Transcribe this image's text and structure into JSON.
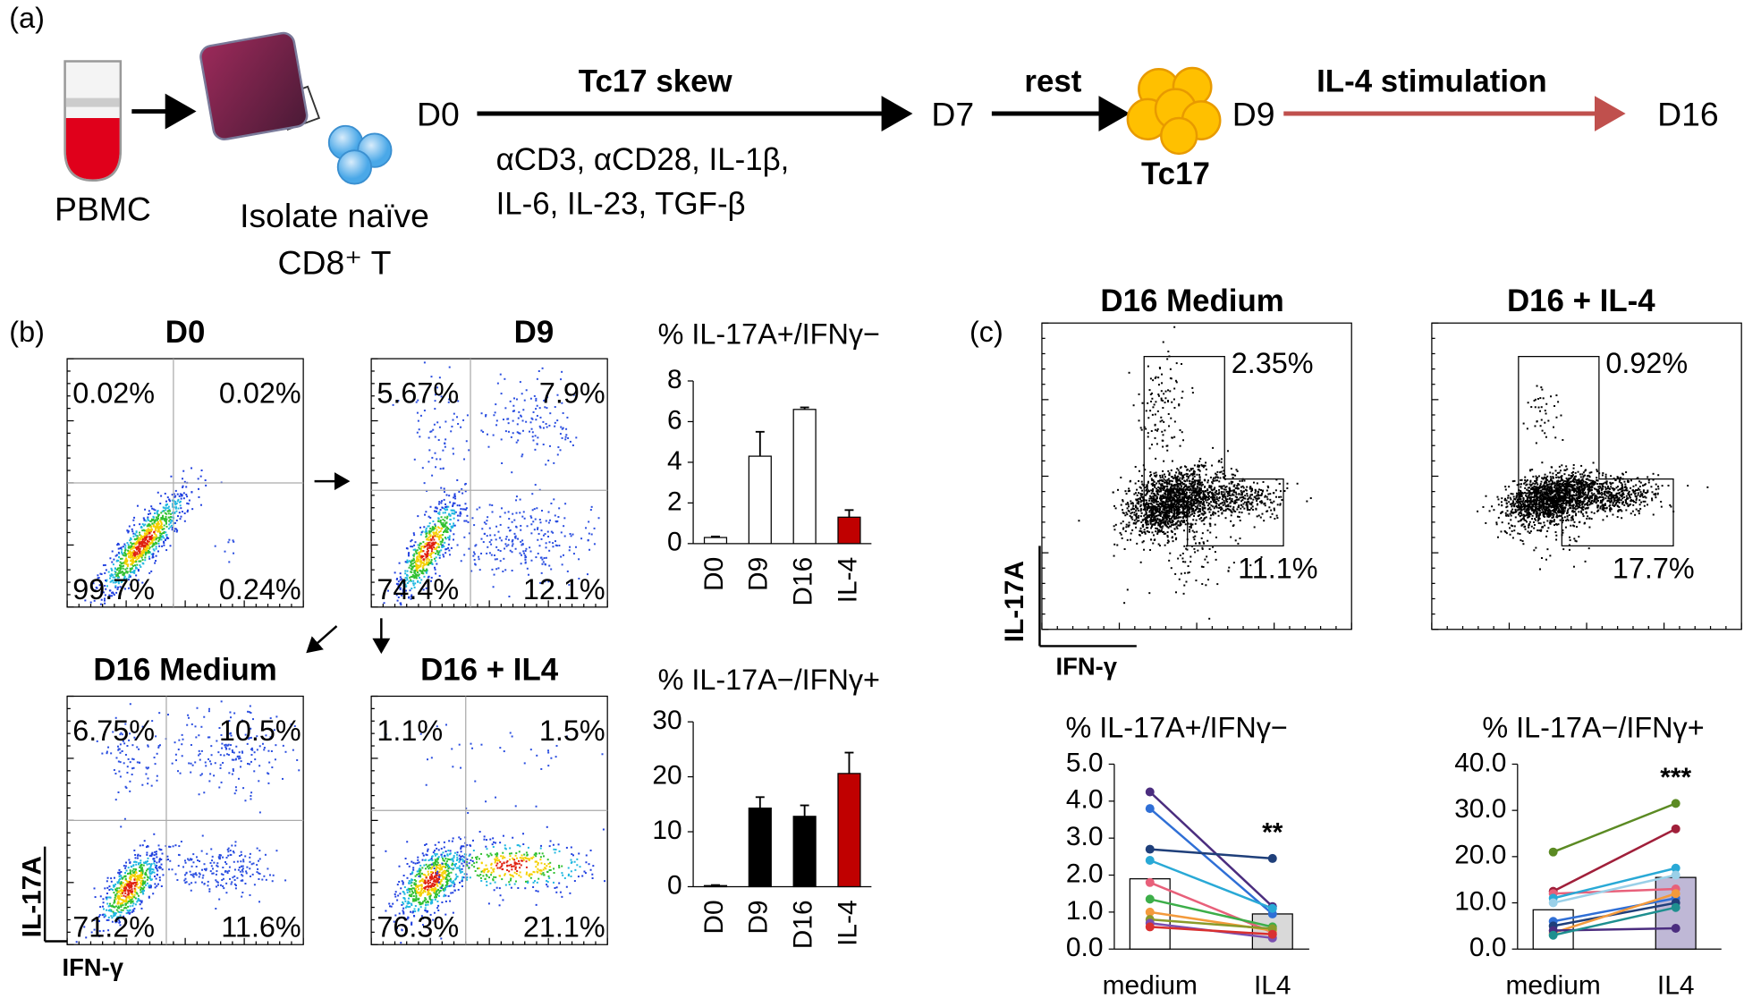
{
  "panel_a": {
    "label": "(a)",
    "pbmc": "PBMC",
    "isolate": [
      "Isolate naïve",
      "CD8⁺ T"
    ],
    "d0": "D0",
    "skew": "Tc17 skew",
    "reagents": [
      "αCD3, αCD28, IL-1β,",
      "IL-6, IL-23, TGF-β"
    ],
    "d7": "D7",
    "rest": "rest",
    "tc17": "Tc17",
    "d9": "D9",
    "stim": "IL-4 stimulation",
    "d16": "D16"
  },
  "panel_b": {
    "label": "(b)",
    "y_axis": "IL-17A",
    "x_axis": "IFN-γ",
    "plots": [
      {
        "title": "D0",
        "quadrants": [
          "0.02%",
          "0.02%",
          "99.7%",
          "0.24%"
        ]
      },
      {
        "title": "D9",
        "quadrants": [
          "5.67%",
          "7.9%",
          "74.4%",
          "12.1%"
        ]
      },
      {
        "title": "D16 Medium",
        "quadrants": [
          "6.75%",
          "10.5%",
          "71.2%",
          "11.6%"
        ]
      },
      {
        "title": "D16 + IL4",
        "quadrants": [
          "1.1%",
          "1.5%",
          "76.3%",
          "21.1%"
        ]
      }
    ]
  },
  "panel_c": {
    "label": "(c)",
    "y_axis": "IL-17A",
    "x_axis": "IFN-γ",
    "plots": [
      {
        "title": "D16 Medium",
        "gates": [
          "2.35%",
          "11.1%"
        ]
      },
      {
        "title": "D16 + IL-4",
        "gates": [
          "0.92%",
          "17.7%"
        ]
      }
    ]
  },
  "chart_data": [
    {
      "type": "bar",
      "title": "% IL-17A+/IFNγ−",
      "categories": [
        "D0",
        "D9",
        "D16",
        "IL-4"
      ],
      "values": [
        0.3,
        4.3,
        6.6,
        1.3
      ],
      "errors": [
        0.05,
        1.2,
        0.1,
        0.35
      ],
      "colors": [
        "#ffffff",
        "#ffffff",
        "#ffffff",
        "#c00000"
      ],
      "ylim": [
        0,
        8
      ],
      "yticks": [
        0,
        2,
        4,
        6,
        8
      ]
    },
    {
      "type": "bar",
      "title": "% IL-17A−/IFNγ+",
      "categories": [
        "D0",
        "D9",
        "D16",
        "IL-4"
      ],
      "values": [
        0.2,
        14.3,
        12.8,
        20.6
      ],
      "errors": [
        0.1,
        2,
        2,
        3.8
      ],
      "colors": [
        "#000000",
        "#000000",
        "#000000",
        "#c00000"
      ],
      "ylim": [
        0,
        30
      ],
      "yticks": [
        0,
        10,
        20,
        30
      ]
    },
    {
      "type": "paired",
      "title": "% IL-17A+/IFNγ−",
      "categories": [
        "medium",
        "IL4"
      ],
      "bar_values": [
        1.9,
        0.95
      ],
      "bar_colors": [
        "#ffffff",
        "#d9d9d9"
      ],
      "annotation": "**",
      "ylim": [
        0,
        5
      ],
      "yticks": [
        {
          "value": 0,
          "label": "0.0"
        },
        {
          "value": 1,
          "label": "1.0"
        },
        {
          "value": 2,
          "label": "2.0"
        },
        {
          "value": 3,
          "label": "3.0"
        },
        {
          "value": 4,
          "label": "4.0"
        },
        {
          "value": 5,
          "label": "5.0"
        }
      ],
      "series": [
        {
          "color": "#4b2d7f",
          "values": [
            4.25,
            1.15
          ]
        },
        {
          "color": "#2f6fd6",
          "values": [
            3.8,
            0.95
          ]
        },
        {
          "color": "#1f3f7a",
          "values": [
            2.7,
            2.45
          ]
        },
        {
          "color": "#29a9d6",
          "values": [
            2.4,
            1.1
          ]
        },
        {
          "color": "#e8607a",
          "values": [
            1.8,
            0.45
          ]
        },
        {
          "color": "#3cae49",
          "values": [
            1.35,
            0.6
          ]
        },
        {
          "color": "#f39a3c",
          "values": [
            1.0,
            0.5
          ]
        },
        {
          "color": "#8a9a2a",
          "values": [
            0.8,
            0.55
          ]
        },
        {
          "color": "#7a4fb0",
          "values": [
            0.7,
            0.3
          ]
        },
        {
          "color": "#d93030",
          "values": [
            0.6,
            0.4
          ]
        }
      ]
    },
    {
      "type": "paired",
      "title": "% IL-17A−/IFNγ+",
      "categories": [
        "medium",
        "IL4"
      ],
      "bar_values": [
        8.5,
        15.5
      ],
      "bar_colors": [
        "#ffffff",
        "#bfb8d6"
      ],
      "annotation": "***",
      "ylim": [
        0,
        40
      ],
      "yticks": [
        {
          "value": 0,
          "label": "0.0"
        },
        {
          "value": 10,
          "label": "10.0"
        },
        {
          "value": 20,
          "label": "20.0"
        },
        {
          "value": 30,
          "label": "30.0"
        },
        {
          "value": 40,
          "label": "40.0"
        }
      ],
      "series": [
        {
          "color": "#5b8a23",
          "values": [
            21,
            31.5
          ]
        },
        {
          "color": "#a01f3a",
          "values": [
            12.5,
            26
          ]
        },
        {
          "color": "#e8607a",
          "values": [
            12,
            13
          ]
        },
        {
          "color": "#29a9d6",
          "values": [
            11,
            17.5
          ]
        },
        {
          "color": "#9ad0e8",
          "values": [
            10,
            16
          ]
        },
        {
          "color": "#2f6fd6",
          "values": [
            6,
            11
          ]
        },
        {
          "color": "#1f3f7a",
          "values": [
            5,
            10
          ]
        },
        {
          "color": "#f39a3c",
          "values": [
            3.5,
            12
          ]
        },
        {
          "color": "#4b2d7f",
          "values": [
            4,
            4.5
          ]
        },
        {
          "color": "#1e8f8f",
          "values": [
            3,
            9
          ]
        }
      ]
    }
  ]
}
